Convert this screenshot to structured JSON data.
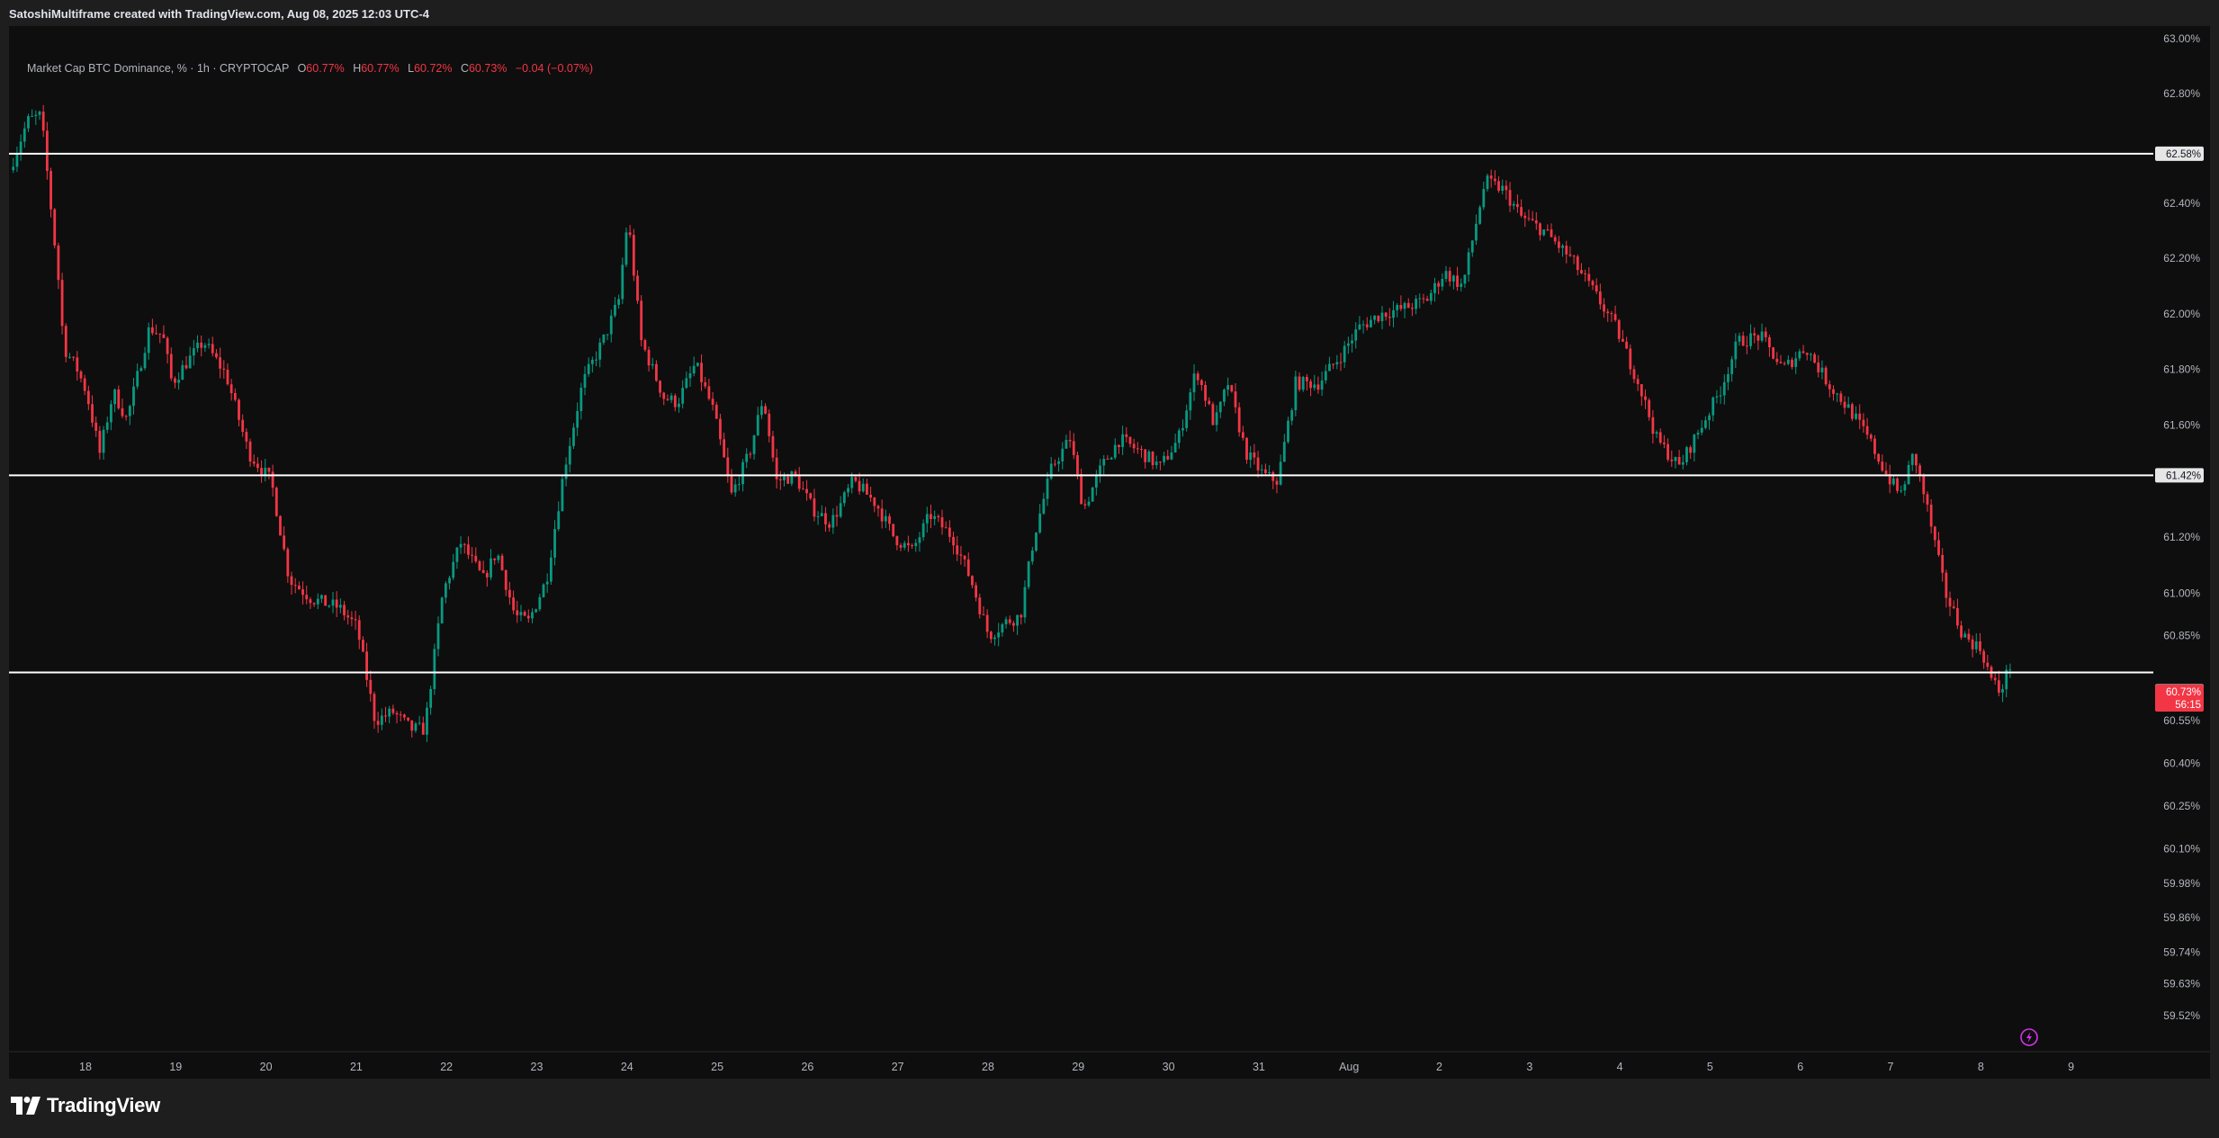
{
  "caption": "SatoshiMultiframe created with TradingView.com, Aug 08, 2025 12:03 UTC-4",
  "legend": {
    "symbol": "Market Cap BTC Dominance, % · 1h · CRYPTOCAP",
    "open_label": "O",
    "open": "60.77%",
    "high_label": "H",
    "high": "60.77%",
    "low_label": "L",
    "low": "60.72%",
    "close_label": "C",
    "close": "60.73%",
    "change": "−0.04 (−0.07%)"
  },
  "brand": {
    "name": "TradingView",
    "icon": "tradingview-logo-icon"
  },
  "colors": {
    "up": "#089981",
    "down": "#f23645",
    "background": "#0e0e0e",
    "frame": "#1e1e1e",
    "levels": "#ffffff",
    "price_tag": "#f23645",
    "replay_icon": "#d432e8"
  },
  "price_tag": {
    "price": "60.73%",
    "countdown": "56:15"
  },
  "replay_button": {
    "icon": "lightning-icon"
  },
  "chart_data": {
    "type": "candlestick",
    "title": "",
    "xlabel": "",
    "ylabel": "",
    "y_scale": "log",
    "ylim": [
      59.45,
      63.12
    ],
    "y_ticks": [
      "63.00%",
      "62.80%",
      "62.40%",
      "62.20%",
      "62.00%",
      "61.80%",
      "61.60%",
      "61.20%",
      "61.00%",
      "60.85%",
      "60.55%",
      "60.40%",
      "60.25%",
      "60.10%",
      "59.98%",
      "59.86%",
      "59.74%",
      "59.63%",
      "59.52%"
    ],
    "y_tick_values": [
      63.0,
      62.8,
      62.4,
      62.2,
      62.0,
      61.8,
      61.6,
      61.2,
      61.0,
      60.85,
      60.55,
      60.4,
      60.25,
      60.1,
      59.98,
      59.86,
      59.74,
      59.63,
      59.52
    ],
    "x_ticks": [
      "18",
      "19",
      "20",
      "21",
      "22",
      "23",
      "24",
      "25",
      "26",
      "27",
      "28",
      "29",
      "30",
      "31",
      "Aug",
      "2",
      "3",
      "4",
      "5",
      "6",
      "7",
      "8",
      "9"
    ],
    "x_range_days": [
      17.2,
      41.6
    ],
    "grid": false,
    "horizontal_levels": [
      {
        "value": 62.58,
        "label": "62.58%"
      },
      {
        "value": 61.42,
        "label": "61.42%"
      },
      {
        "value": 60.72,
        "label": "60.72%"
      }
    ],
    "last_price": 60.73,
    "path_anchors": [
      [
        17.2,
        62.52
      ],
      [
        17.4,
        62.7
      ],
      [
        17.55,
        62.72
      ],
      [
        17.75,
        62.1
      ],
      [
        17.8,
        61.88
      ],
      [
        17.95,
        61.8
      ],
      [
        18.05,
        61.72
      ],
      [
        18.2,
        61.5
      ],
      [
        18.35,
        61.72
      ],
      [
        18.5,
        61.62
      ],
      [
        18.75,
        61.95
      ],
      [
        18.9,
        61.92
      ],
      [
        19.0,
        61.75
      ],
      [
        19.15,
        61.82
      ],
      [
        19.35,
        61.9
      ],
      [
        19.6,
        61.78
      ],
      [
        19.85,
        61.5
      ],
      [
        20.1,
        61.4
      ],
      [
        20.3,
        61.05
      ],
      [
        20.55,
        60.98
      ],
      [
        20.85,
        60.95
      ],
      [
        21.05,
        60.88
      ],
      [
        21.25,
        60.55
      ],
      [
        21.45,
        60.58
      ],
      [
        21.65,
        60.52
      ],
      [
        21.8,
        60.52
      ],
      [
        22.0,
        61.0
      ],
      [
        22.2,
        61.18
      ],
      [
        22.45,
        61.05
      ],
      [
        22.6,
        61.15
      ],
      [
        22.8,
        60.92
      ],
      [
        22.95,
        60.9
      ],
      [
        23.15,
        61.05
      ],
      [
        23.35,
        61.45
      ],
      [
        23.55,
        61.75
      ],
      [
        23.8,
        61.92
      ],
      [
        23.95,
        62.05
      ],
      [
        24.05,
        62.35
      ],
      [
        24.2,
        61.9
      ],
      [
        24.45,
        61.7
      ],
      [
        24.6,
        61.68
      ],
      [
        24.8,
        61.82
      ],
      [
        25.0,
        61.65
      ],
      [
        25.2,
        61.35
      ],
      [
        25.4,
        61.5
      ],
      [
        25.55,
        61.7
      ],
      [
        25.7,
        61.4
      ],
      [
        25.9,
        61.42
      ],
      [
        26.1,
        61.3
      ],
      [
        26.3,
        61.25
      ],
      [
        26.55,
        61.4
      ],
      [
        26.8,
        61.32
      ],
      [
        27.0,
        61.2
      ],
      [
        27.2,
        61.15
      ],
      [
        27.4,
        61.28
      ],
      [
        27.65,
        61.2
      ],
      [
        27.85,
        61.05
      ],
      [
        28.05,
        60.85
      ],
      [
        28.25,
        60.9
      ],
      [
        28.4,
        60.92
      ],
      [
        28.55,
        61.2
      ],
      [
        28.75,
        61.45
      ],
      [
        28.95,
        61.55
      ],
      [
        29.1,
        61.3
      ],
      [
        29.3,
        61.45
      ],
      [
        29.5,
        61.55
      ],
      [
        29.75,
        61.5
      ],
      [
        29.95,
        61.45
      ],
      [
        30.15,
        61.55
      ],
      [
        30.35,
        61.8
      ],
      [
        30.55,
        61.6
      ],
      [
        30.7,
        61.75
      ],
      [
        30.9,
        61.5
      ],
      [
        31.1,
        61.42
      ],
      [
        31.25,
        61.4
      ],
      [
        31.45,
        61.75
      ],
      [
        31.7,
        61.75
      ],
      [
        31.95,
        61.85
      ],
      [
        32.15,
        61.95
      ],
      [
        32.4,
        62.0
      ],
      [
        32.65,
        62.02
      ],
      [
        32.9,
        62.05
      ],
      [
        33.1,
        62.15
      ],
      [
        33.3,
        62.1
      ],
      [
        33.55,
        62.48
      ],
      [
        33.75,
        62.45
      ],
      [
        33.95,
        62.35
      ],
      [
        34.2,
        62.3
      ],
      [
        34.5,
        62.2
      ],
      [
        34.75,
        62.08
      ],
      [
        35.0,
        61.95
      ],
      [
        35.25,
        61.75
      ],
      [
        35.45,
        61.55
      ],
      [
        35.7,
        61.45
      ],
      [
        35.95,
        61.6
      ],
      [
        36.15,
        61.72
      ],
      [
        36.35,
        61.9
      ],
      [
        36.6,
        61.92
      ],
      [
        36.85,
        61.8
      ],
      [
        37.1,
        61.88
      ],
      [
        37.35,
        61.75
      ],
      [
        37.6,
        61.65
      ],
      [
        37.8,
        61.55
      ],
      [
        38.0,
        61.42
      ],
      [
        38.15,
        61.35
      ],
      [
        38.3,
        61.5
      ],
      [
        38.45,
        61.3
      ],
      [
        38.65,
        61.0
      ],
      [
        38.85,
        60.85
      ],
      [
        39.05,
        60.8
      ],
      [
        39.15,
        60.7
      ],
      [
        39.25,
        60.65
      ],
      [
        39.35,
        60.73
      ]
    ]
  }
}
